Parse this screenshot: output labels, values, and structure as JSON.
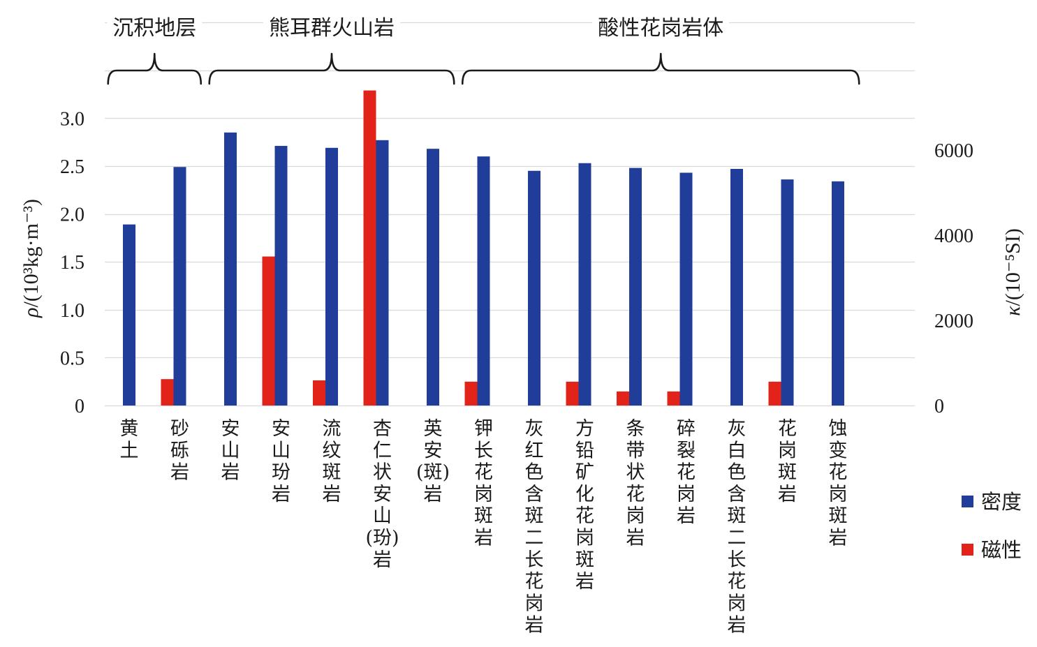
{
  "chart_data": {
    "type": "bar",
    "categories": [
      "黄土",
      "砂砾岩",
      "安山岩",
      "安山玢岩",
      "流纹斑岩",
      "杏仁状安山(玢)岩",
      "英安(斑)岩",
      "钾长花岗斑岩",
      "灰红色含斑二长花岗岩",
      "方铅矿化花岗斑岩",
      "条带状花岗岩",
      "碎裂花岗岩",
      "灰白色含斑二长花岗岩",
      "花岗斑岩",
      "蚀变花岗斑岩"
    ],
    "series": [
      {
        "name": "密度",
        "secondary_axis": false,
        "color": "#1f3d99",
        "values": [
          1.89,
          2.49,
          2.85,
          2.71,
          2.69,
          2.77,
          2.68,
          2.6,
          2.45,
          2.53,
          2.48,
          2.43,
          2.47,
          2.36,
          2.34
        ]
      },
      {
        "name": "磁性",
        "secondary_axis": true,
        "color": "#e2231a",
        "values": [
          null,
          620,
          null,
          3500,
          590,
          7400,
          null,
          560,
          null,
          560,
          330,
          330,
          null,
          560,
          null
        ]
      }
    ],
    "ylabel": "ρ/(10³kg·m⁻³)",
    "y2label": "κ/(10⁻⁵SI)",
    "ylim": [
      0,
      4
    ],
    "y2lim": [
      0,
      9000
    ],
    "yticks": [
      "0",
      "0.5",
      "1.0",
      "1.5",
      "2.0",
      "2.5",
      "3.0"
    ],
    "y2ticks": [
      "0",
      "2000",
      "4000",
      "6000"
    ],
    "grid": true,
    "grid_color": "#d9d9d9",
    "legend_position": "bottom-right",
    "groups": [
      {
        "label": "沉积地层",
        "first": 0,
        "last": 1
      },
      {
        "label": "熊耳群火山岩",
        "first": 2,
        "last": 6
      },
      {
        "label": "酸性花岗岩体",
        "first": 7,
        "last": 14
      }
    ]
  }
}
